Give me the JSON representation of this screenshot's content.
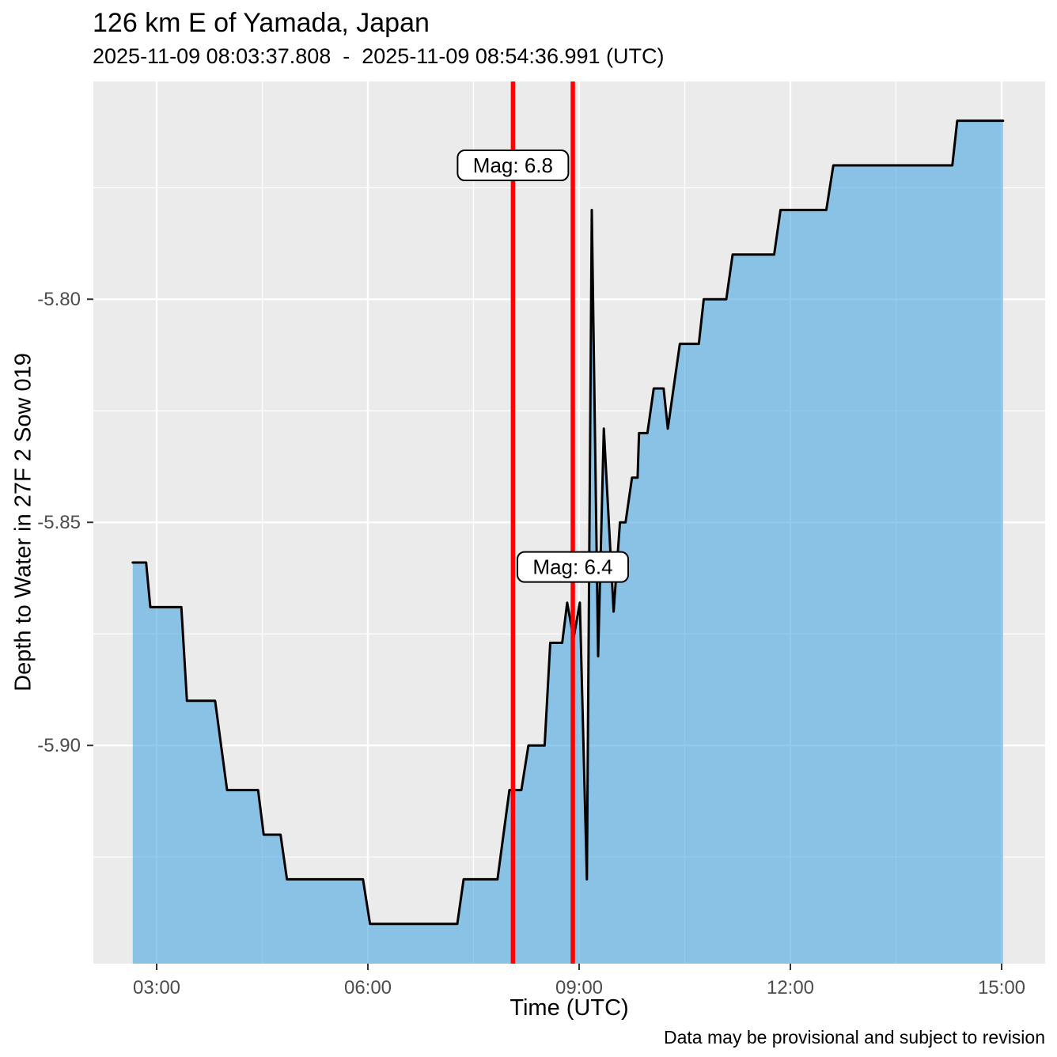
{
  "header": {
    "title": "126 km E of Yamada, Japan",
    "subtitle": "2025-11-09 08:03:37.808  -  2025-11-09 08:54:36.991 (UTC)"
  },
  "caption": "Data may be provisional and subject to revision",
  "chart_data": {
    "type": "area",
    "title": "126 km E of Yamada, Japan",
    "subtitle": "2025-11-09 08:03:37.808  -  2025-11-09 08:54:36.991 (UTC)",
    "xlabel": "Time (UTC)",
    "ylabel": "Depth to Water in 27F 2 Sow 019",
    "x_unit": "hours UTC on 2025-11-09",
    "x_domain": [
      2.101,
      15.618
    ],
    "y_domain": [
      -5.9489,
      -5.7512
    ],
    "grid": "on",
    "x_ticks": [
      {
        "t": 3,
        "label": "03:00"
      },
      {
        "t": 6,
        "label": "06:00"
      },
      {
        "t": 9,
        "label": "09:00"
      },
      {
        "t": 12,
        "label": "12:00"
      },
      {
        "t": 15,
        "label": "15:00"
      }
    ],
    "x_minor": [
      4.5,
      7.5,
      10.5,
      13.5
    ],
    "y_ticks": [
      {
        "v": -5.8,
        "label": "-5.80"
      },
      {
        "v": -5.85,
        "label": "-5.85"
      },
      {
        "v": -5.9,
        "label": "-5.90"
      }
    ],
    "y_minor": [
      -5.775,
      -5.825,
      -5.875,
      -5.925
    ],
    "series": [
      {
        "name": "depth-to-water",
        "points": [
          [
            2.66,
            -5.859
          ],
          [
            2.85,
            -5.859
          ],
          [
            2.91,
            -5.869
          ],
          [
            3.35,
            -5.869
          ],
          [
            3.43,
            -5.89
          ],
          [
            3.83,
            -5.89
          ],
          [
            4.0,
            -5.91
          ],
          [
            4.44,
            -5.91
          ],
          [
            4.52,
            -5.92
          ],
          [
            4.76,
            -5.92
          ],
          [
            4.85,
            -5.93
          ],
          [
            5.93,
            -5.93
          ],
          [
            6.03,
            -5.94
          ],
          [
            7.27,
            -5.94
          ],
          [
            7.36,
            -5.93
          ],
          [
            7.84,
            -5.93
          ],
          [
            8.01,
            -5.91
          ],
          [
            8.18,
            -5.91
          ],
          [
            8.28,
            -5.9
          ],
          [
            8.51,
            -5.9
          ],
          [
            8.59,
            -5.877
          ],
          [
            8.76,
            -5.877
          ],
          [
            8.83,
            -5.868
          ],
          [
            8.92,
            -5.876
          ],
          [
            9.01,
            -5.868
          ],
          [
            9.11,
            -5.93
          ],
          [
            9.18,
            -5.78
          ],
          [
            9.27,
            -5.88
          ],
          [
            9.35,
            -5.829
          ],
          [
            9.49,
            -5.87
          ],
          [
            9.58,
            -5.85
          ],
          [
            9.66,
            -5.85
          ],
          [
            9.75,
            -5.84
          ],
          [
            9.83,
            -5.84
          ],
          [
            9.85,
            -5.83
          ],
          [
            9.97,
            -5.83
          ],
          [
            10.06,
            -5.82
          ],
          [
            10.2,
            -5.82
          ],
          [
            10.26,
            -5.829
          ],
          [
            10.43,
            -5.81
          ],
          [
            10.7,
            -5.81
          ],
          [
            10.77,
            -5.8
          ],
          [
            11.09,
            -5.8
          ],
          [
            11.18,
            -5.79
          ],
          [
            11.77,
            -5.79
          ],
          [
            11.86,
            -5.78
          ],
          [
            12.51,
            -5.78
          ],
          [
            12.61,
            -5.77
          ],
          [
            14.3,
            -5.77
          ],
          [
            14.37,
            -5.76
          ],
          [
            15.02,
            -5.76
          ]
        ]
      }
    ],
    "event_lines": [
      {
        "t": 8.0605,
        "label": "Mag: 6.8",
        "label_v": -5.77
      },
      {
        "t": 8.9103,
        "label": "Mag: 6.4",
        "label_v": -5.86
      }
    ],
    "colors": {
      "panel": "#EBEBEB",
      "grid": "#FFFFFF",
      "area_fill": "#49A7E3",
      "area_fill_opacity": 0.6,
      "line": "#000000",
      "event_line": "#FF0000",
      "tick_label": "#4D4D4D",
      "tick_mark": "#333333",
      "text": "#000000",
      "label_box_fill": "#FFFFFF",
      "label_box_border": "#000000"
    }
  }
}
